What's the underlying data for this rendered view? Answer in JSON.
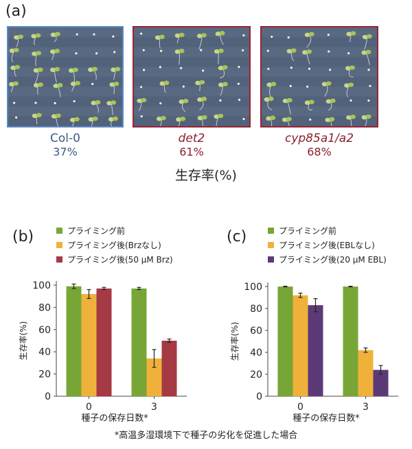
{
  "panel_a": {
    "letter": "(a)",
    "genotypes": [
      {
        "name": "Col-0",
        "percent": "37%",
        "color": "#3b5a8a",
        "border": "#5b8ac6"
      },
      {
        "name": "det2",
        "percent": "61%",
        "color": "#8a1f2b",
        "border": "#9b2334"
      },
      {
        "name": "cyp85a1/a2",
        "percent": "68%",
        "color": "#8a1f2b",
        "border": "#9b2334"
      }
    ],
    "survival_label": "生存率(%)"
  },
  "colors": {
    "green": "#77a637",
    "orange": "#f0b13b",
    "maroon": "#a53a44",
    "purple": "#5c3a78"
  },
  "chart_data": [
    {
      "type": "bar",
      "panel": "(b)",
      "categories": [
        "0",
        "3"
      ],
      "series": [
        {
          "name": "プライミング前",
          "values": [
            99,
            97
          ],
          "errors": [
            2,
            1
          ],
          "color": "#77a637"
        },
        {
          "name": "プライミング後(Brzなし)",
          "values": [
            92,
            34
          ],
          "errors": [
            4,
            8
          ],
          "color": "#f0b13b"
        },
        {
          "name": "プライミング後(50 μM Brz)",
          "values": [
            97,
            50
          ],
          "errors": [
            1,
            1.5
          ],
          "color": "#a53a44"
        }
      ],
      "xlabel": "種子の保存日数*",
      "ylabel": "生存率(%)",
      "ylim": [
        0,
        100
      ],
      "yticks": [
        "0",
        "20",
        "40",
        "60",
        "80",
        "100"
      ]
    },
    {
      "type": "bar",
      "panel": "(c)",
      "categories": [
        "0",
        "3"
      ],
      "series": [
        {
          "name": "プライミング前",
          "values": [
            100,
            100
          ],
          "errors": [
            0.3,
            0.3
          ],
          "color": "#77a637"
        },
        {
          "name": "プライミング後(EBLなし)",
          "values": [
            92,
            42
          ],
          "errors": [
            2,
            2
          ],
          "color": "#f0b13b"
        },
        {
          "name": "プライミング後(20 μM EBL)",
          "values": [
            83,
            24
          ],
          "errors": [
            6,
            4
          ],
          "color": "#5c3a78"
        }
      ],
      "xlabel": "種子の保存日数*",
      "ylabel": "生存率(%)",
      "ylim": [
        0,
        100
      ],
      "yticks": [
        "0",
        "20",
        "40",
        "60",
        "80",
        "100"
      ]
    }
  ],
  "footnote": "*高温多湿環境下で種子の劣化を促進した場合"
}
